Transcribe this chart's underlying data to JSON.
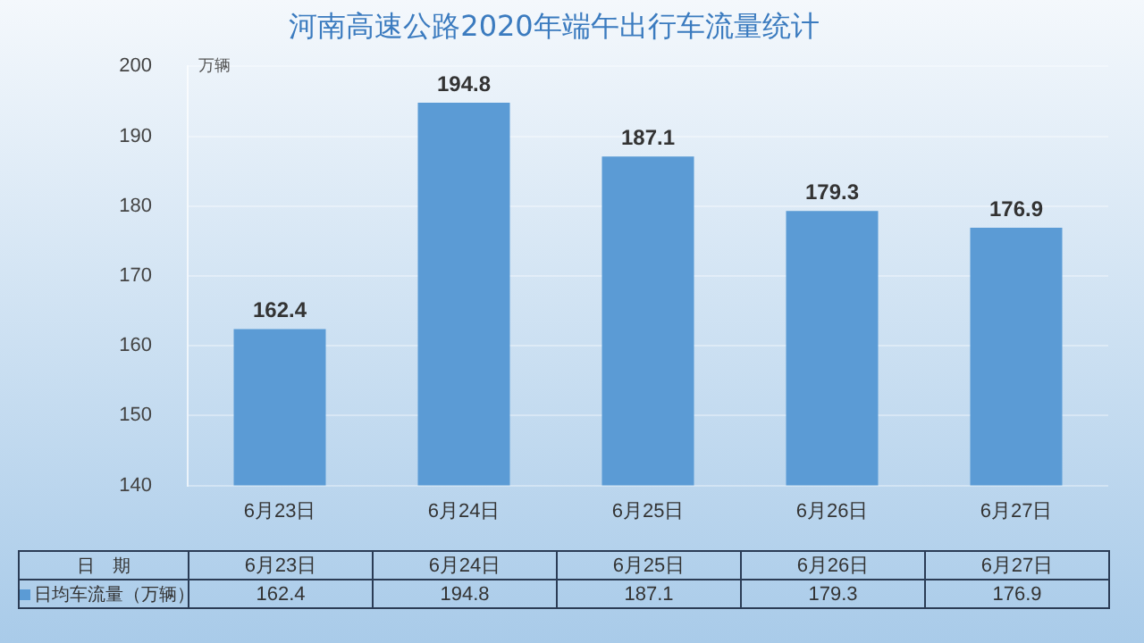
{
  "chart_data": {
    "type": "bar",
    "title": "河南高速公路2020年端午出行车流量统计",
    "xlabel": "日　期",
    "ylabel": "万辆",
    "categories": [
      "6月23日",
      "6月24日",
      "6月25日",
      "6月26日",
      "6月27日"
    ],
    "series": [
      {
        "name": "日均车流量（万辆）",
        "color": "#5b9bd5",
        "values": [
          162.4,
          194.8,
          187.1,
          179.3,
          176.9
        ],
        "value_labels": [
          "162.4",
          "194.8",
          "187.1",
          "179.3",
          "176.9"
        ]
      }
    ],
    "annotations": [
      "162.4",
      "194.8",
      "187.1",
      "179.3",
      "176.9"
    ],
    "ylim": [
      140,
      200
    ],
    "yticks": [
      140,
      150,
      160,
      170,
      180,
      190,
      200
    ],
    "grid": "y",
    "legend": "bottom"
  }
}
